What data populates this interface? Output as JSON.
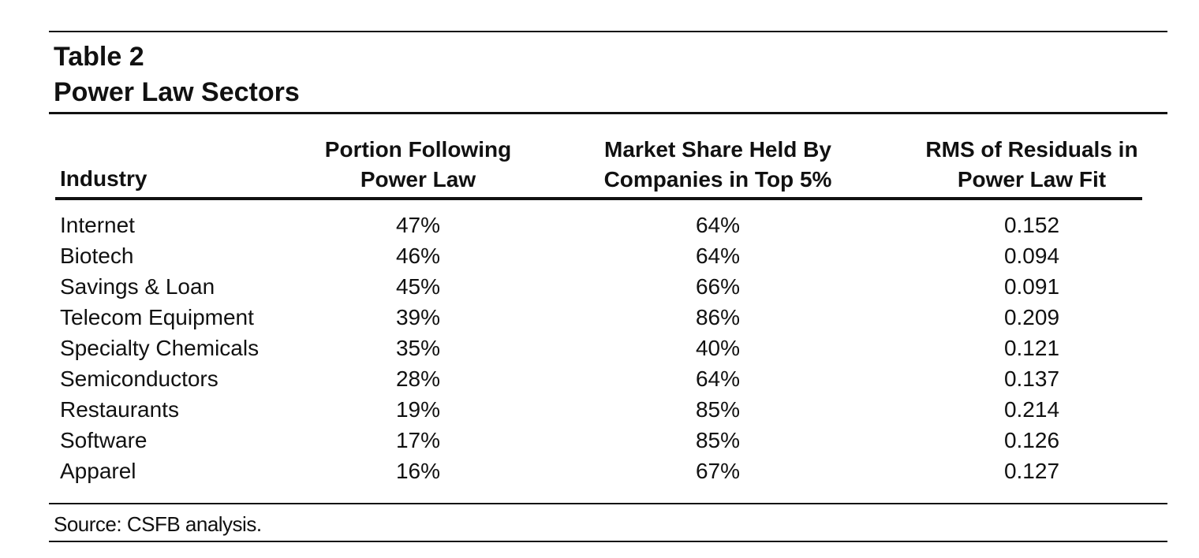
{
  "table": {
    "title_line1": "Table 2",
    "title_line2": "Power Law Sectors",
    "headers": {
      "industry": "Industry",
      "portion_line1": "Portion Following",
      "portion_line2": "Power Law",
      "share_line1": "Market Share Held By",
      "share_line2": "Companies in Top 5%",
      "rms_line1": "RMS of Residuals in",
      "rms_line2": "Power Law Fit"
    },
    "rows": [
      {
        "industry": "Internet",
        "portion": "47%",
        "share": "64%",
        "rms": "0.152"
      },
      {
        "industry": "Biotech",
        "portion": "46%",
        "share": "64%",
        "rms": "0.094"
      },
      {
        "industry": "Savings & Loan",
        "portion": "45%",
        "share": "66%",
        "rms": "0.091"
      },
      {
        "industry": "Telecom Equipment",
        "portion": "39%",
        "share": "86%",
        "rms": "0.209"
      },
      {
        "industry": "Specialty Chemicals",
        "portion": "35%",
        "share": "40%",
        "rms": "0.121"
      },
      {
        "industry": "Semiconductors",
        "portion": "28%",
        "share": "64%",
        "rms": "0.137"
      },
      {
        "industry": "Restaurants",
        "portion": "19%",
        "share": "85%",
        "rms": "0.214"
      },
      {
        "industry": "Software",
        "portion": "17%",
        "share": "85%",
        "rms": "0.126"
      },
      {
        "industry": "Apparel",
        "portion": "16%",
        "share": "67%",
        "rms": "0.127"
      }
    ],
    "source": "Source: CSFB analysis."
  }
}
